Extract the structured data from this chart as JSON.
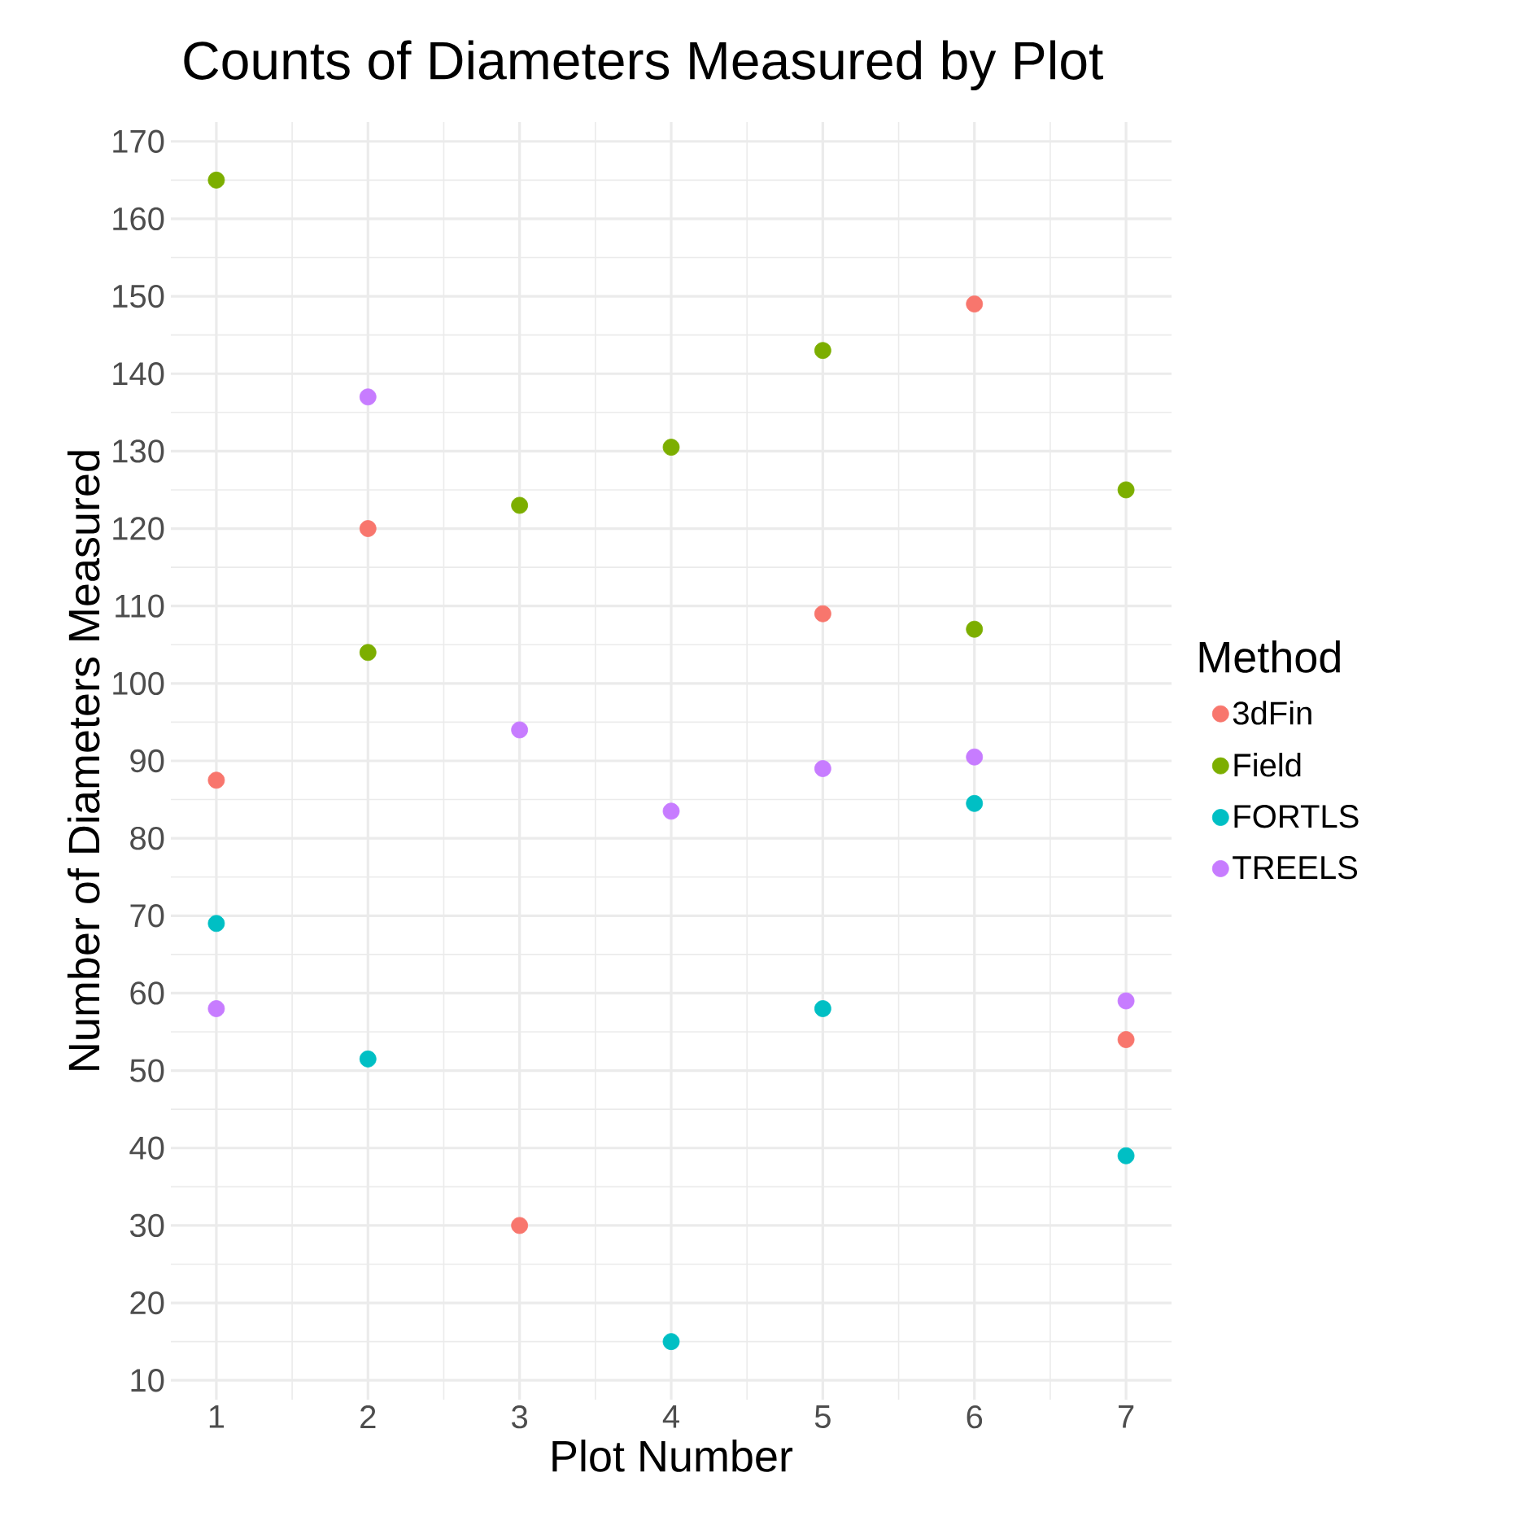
{
  "chart_data": {
    "type": "scatter",
    "title": "Counts of Diameters Measured by Plot",
    "xlabel": "Plot Number",
    "ylabel": "Number of Diameters Measured",
    "legend_title": "Method",
    "x": [
      1,
      2,
      3,
      4,
      5,
      6,
      7
    ],
    "series": [
      {
        "name": "3dFin",
        "color": "#f8766d",
        "values": [
          87.5,
          120,
          30,
          null,
          109,
          149,
          54
        ]
      },
      {
        "name": "Field",
        "color": "#7cae00",
        "values": [
          165,
          104,
          123,
          130.5,
          143,
          107,
          125
        ]
      },
      {
        "name": "FORTLS",
        "color": "#00bfc4",
        "values": [
          69,
          51.5,
          null,
          15,
          58,
          84.5,
          39
        ]
      },
      {
        "name": "TREELS",
        "color": "#c77cff",
        "values": [
          58,
          137,
          94,
          83.5,
          89,
          90.5,
          59
        ]
      }
    ],
    "xlim": [
      0.7,
      7.3
    ],
    "ylim": [
      7.5,
      172.5
    ],
    "xticks": [
      1,
      2,
      3,
      4,
      5,
      6,
      7
    ],
    "yticks": [
      10,
      20,
      30,
      40,
      50,
      60,
      70,
      80,
      90,
      100,
      110,
      120,
      130,
      140,
      150,
      160,
      170
    ],
    "grid": true,
    "legend": "right",
    "marker": "circle"
  }
}
